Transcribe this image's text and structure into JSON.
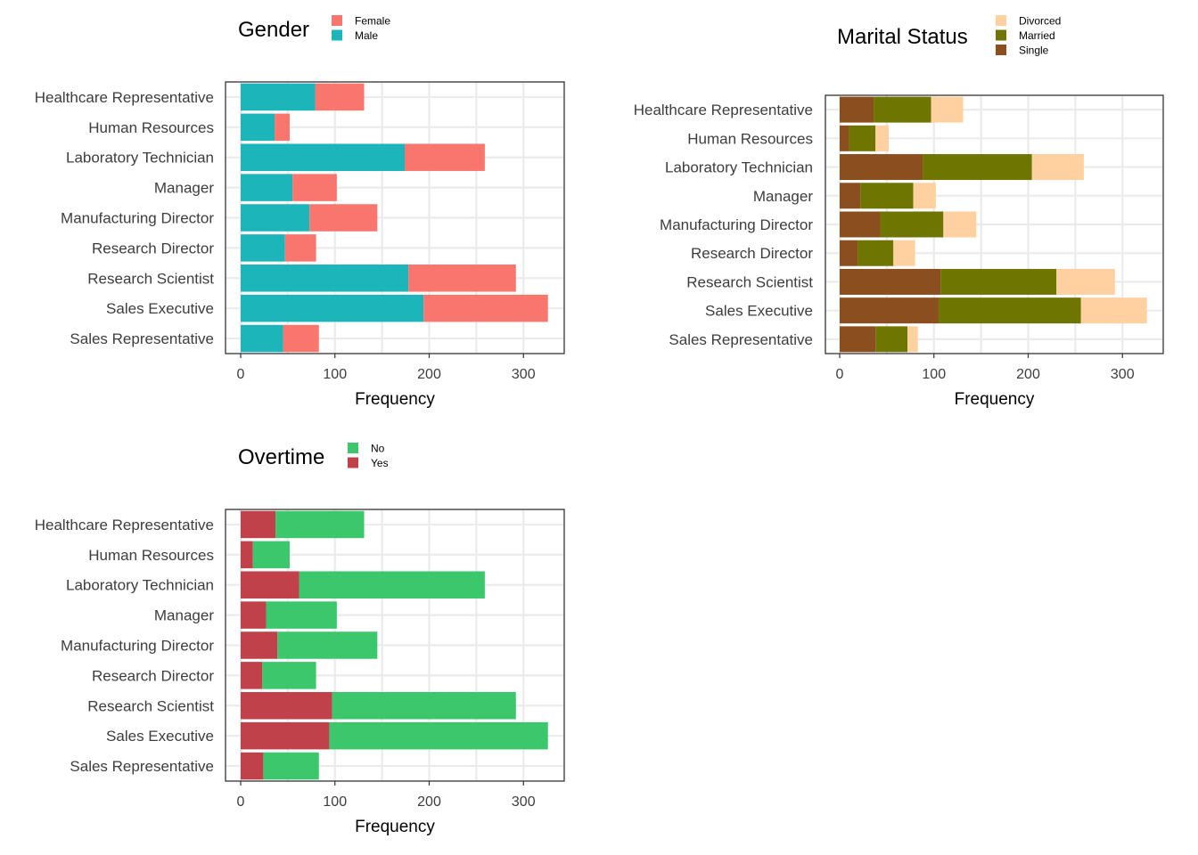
{
  "chart_data": [
    {
      "type": "bar",
      "orientation": "horizontal",
      "stacked": true,
      "title": "Gender",
      "xlabel": "Frequency",
      "ylabel": "",
      "xlim": [
        0,
        340
      ],
      "xticks": [
        0,
        100,
        200,
        300
      ],
      "grid": true,
      "legend_position": "right of title",
      "categories": [
        "Healthcare Representative",
        "Human Resources",
        "Laboratory Technician",
        "Manager",
        "Manufacturing Director",
        "Research Director",
        "Research Scientist",
        "Sales Executive",
        "Sales Representative"
      ],
      "series": [
        {
          "name": "Female",
          "color": "#F8766D",
          "values": [
            52,
            16,
            85,
            47,
            72,
            33,
            114,
            132,
            38
          ]
        },
        {
          "name": "Male",
          "color": "#1BB5BA",
          "values": [
            79,
            36,
            174,
            55,
            73,
            47,
            178,
            194,
            45
          ]
        }
      ],
      "stack_order": [
        "Male",
        "Female"
      ]
    },
    {
      "type": "bar",
      "orientation": "horizontal",
      "stacked": true,
      "title": "Marital Status",
      "xlabel": "Frequency",
      "ylabel": "",
      "xlim": [
        0,
        340
      ],
      "xticks": [
        0,
        100,
        200,
        300
      ],
      "grid": true,
      "legend_position": "right of title",
      "categories": [
        "Healthcare Representative",
        "Human Resources",
        "Laboratory Technician",
        "Manager",
        "Manufacturing Director",
        "Research Director",
        "Research Scientist",
        "Sales Executive",
        "Sales Representative"
      ],
      "series": [
        {
          "name": "Divorced",
          "color": "#FFD1A0",
          "values": [
            34,
            14,
            55,
            24,
            35,
            23,
            62,
            70,
            11
          ]
        },
        {
          "name": "Married",
          "color": "#6E7500",
          "values": [
            61,
            28,
            116,
            56,
            67,
            38,
            123,
            151,
            34
          ]
        },
        {
          "name": "Single",
          "color": "#8B4E1F",
          "values": [
            36,
            10,
            88,
            22,
            43,
            19,
            107,
            105,
            38
          ]
        }
      ],
      "stack_order": [
        "Single",
        "Married",
        "Divorced"
      ]
    },
    {
      "type": "bar",
      "orientation": "horizontal",
      "stacked": true,
      "title": "Overtime",
      "xlabel": "Frequency",
      "ylabel": "",
      "xlim": [
        0,
        340
      ],
      "xticks": [
        0,
        100,
        200,
        300
      ],
      "grid": true,
      "legend_position": "right of title",
      "categories": [
        "Healthcare Representative",
        "Human Resources",
        "Laboratory Technician",
        "Manager",
        "Manufacturing Director",
        "Research Director",
        "Research Scientist",
        "Sales Executive",
        "Sales Representative"
      ],
      "series": [
        {
          "name": "No",
          "color": "#3CC76D",
          "values": [
            94,
            39,
            197,
            75,
            106,
            57,
            195,
            232,
            59
          ]
        },
        {
          "name": "Yes",
          "color": "#C1414A",
          "values": [
            37,
            13,
            62,
            27,
            39,
            23,
            97,
            94,
            24
          ]
        }
      ],
      "stack_order": [
        "Yes",
        "No"
      ]
    }
  ]
}
